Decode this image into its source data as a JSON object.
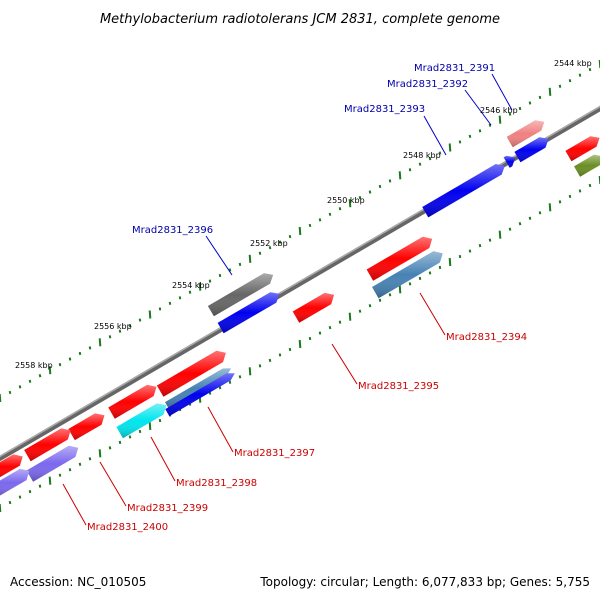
{
  "title": "Methylobacterium radiotolerans JCM 2831, complete genome",
  "footer": {
    "accession": "Accession: NC_010505",
    "summary": "Topology: circular; Length: 6,077,833 bp; Genes: 5,755"
  },
  "colors": {
    "backbone": "#888888",
    "tick": "#1a7a1a",
    "label_top": "#0000aa",
    "label_bottom": "#cc0000",
    "leader_top": "#0000cc",
    "leader_bottom": "#cc0000"
  },
  "ticks": [
    "2544 kbp",
    "2546 kbp",
    "2548 kbp",
    "2550 kbp",
    "2552 kbp",
    "2554 kbp",
    "2556 kbp",
    "2558 kbp"
  ],
  "genes_top_labels": [
    "Mrad2831_2391",
    "Mrad2831_2392",
    "Mrad2831_2393",
    "Mrad2831_2396"
  ],
  "genes_bottom_labels": [
    "Mrad2831_2394",
    "Mrad2831_2395",
    "Mrad2831_2397",
    "Mrad2831_2398",
    "Mrad2831_2399",
    "Mrad2831_2400"
  ],
  "feature_colors": [
    "#ff0000",
    "#0000ee",
    "#f08080",
    "#6b8e23",
    "#666666",
    "#4682b4",
    "#00e5ee",
    "#7b68ee"
  ]
}
